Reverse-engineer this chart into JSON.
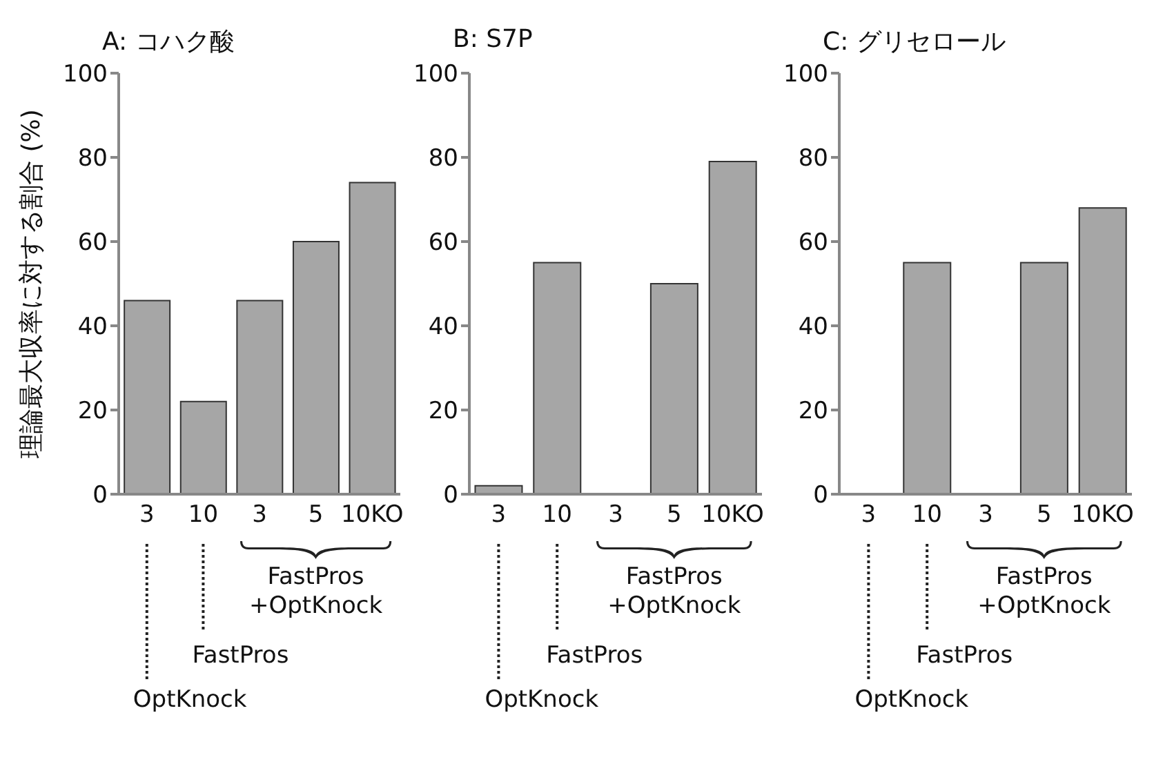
{
  "chart_data": [
    {
      "type": "bar",
      "title": "A: コハク酸",
      "ylabel": "理論最大収率に対する割合 (%)",
      "categories": [
        "3",
        "10",
        "3",
        "5",
        "10KO"
      ],
      "values": [
        46,
        22,
        46,
        60,
        74
      ],
      "color": "#a6a6a6",
      "ylim": [
        0,
        100
      ],
      "yticks": [
        0,
        20,
        40,
        60,
        80,
        100
      ],
      "grid": false,
      "annotations": [
        "OptKnock",
        "FastPros",
        "FastPros\n+OptKnock"
      ]
    },
    {
      "type": "bar",
      "title": "B: S7P",
      "categories": [
        "3",
        "10",
        "3",
        "5",
        "10KO"
      ],
      "values": [
        2,
        55,
        0,
        50,
        79
      ],
      "color": "#a6a6a6",
      "ylim": [
        0,
        100
      ],
      "yticks": [
        0,
        20,
        40,
        60,
        80,
        100
      ],
      "grid": false,
      "annotations": [
        "OptKnock",
        "FastPros",
        "FastPros\n+OptKnock"
      ]
    },
    {
      "type": "bar",
      "title": "C: グリセロール",
      "categories": [
        "3",
        "10",
        "3",
        "5",
        "10KO"
      ],
      "values": [
        0,
        55,
        0,
        55,
        68
      ],
      "color": "#a6a6a6",
      "ylim": [
        0,
        100
      ],
      "yticks": [
        0,
        20,
        40,
        60,
        80,
        100
      ],
      "grid": false,
      "annotations": [
        "OptKnock",
        "FastPros",
        "FastPros\n+OptKnock"
      ]
    }
  ]
}
